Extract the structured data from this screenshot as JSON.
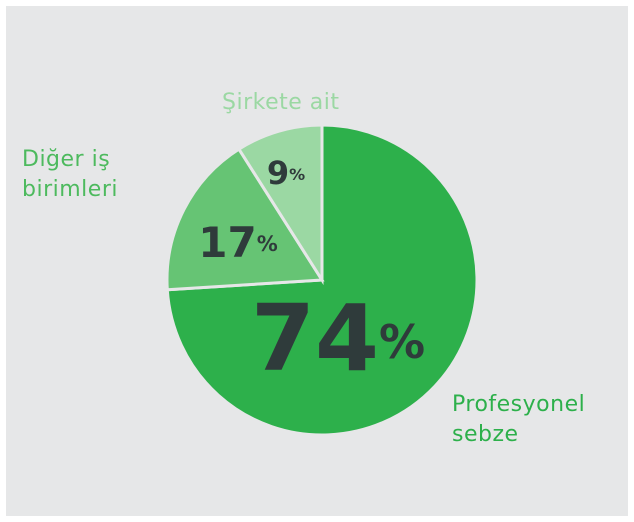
{
  "chart_data": {
    "type": "pie",
    "categories": [
      "Profesyonel sebze",
      "Diğer iş birimleri",
      "Şirkete ait"
    ],
    "values": [
      74,
      17,
      9
    ],
    "value_labels": [
      "74%",
      "17%",
      "9%"
    ],
    "colors": [
      "#2db04b",
      "#66c474",
      "#9bd8a3"
    ]
  }
}
